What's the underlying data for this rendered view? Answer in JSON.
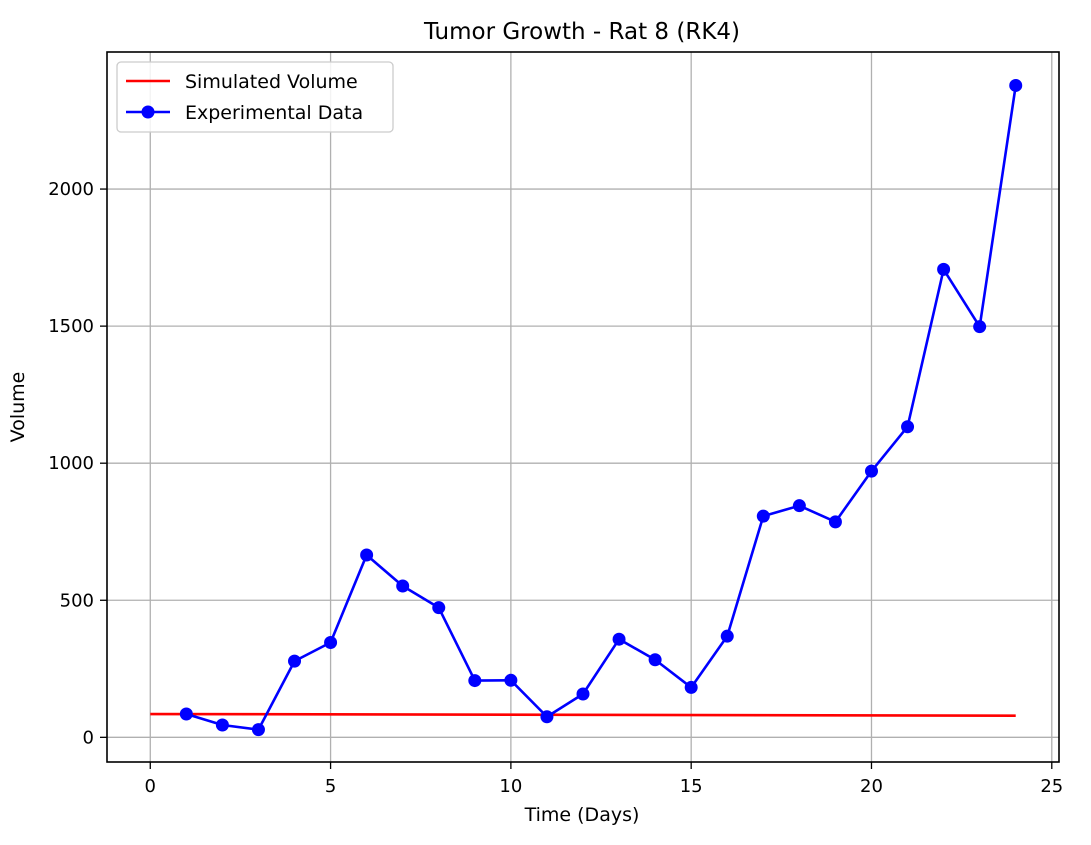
{
  "chart_data": {
    "type": "line",
    "title": "Tumor Growth - Rat 8 (RK4)",
    "xlabel": "Time (Days)",
    "ylabel": "Volume",
    "xlim": [
      -1.2,
      25.2
    ],
    "ylim": [
      -90,
      2500
    ],
    "xticks": [
      0,
      5,
      10,
      15,
      20,
      25
    ],
    "yticks": [
      0,
      500,
      1000,
      1500,
      2000
    ],
    "grid": true,
    "legend_position": "top-left",
    "series": [
      {
        "name": "Simulated Volume",
        "color": "#ff0000",
        "marker": false,
        "x": [
          0,
          24
        ],
        "y": [
          85,
          79
        ]
      },
      {
        "name": "Experimental Data",
        "color": "#0000ff",
        "marker": true,
        "x": [
          1,
          2,
          3,
          4,
          5,
          6,
          7,
          8,
          9,
          10,
          11,
          12,
          13,
          14,
          15,
          16,
          17,
          18,
          19,
          20,
          21,
          22,
          23,
          24
        ],
        "y": [
          85,
          45,
          28,
          278,
          346,
          665,
          552,
          473,
          207,
          208,
          75,
          158,
          358,
          283,
          182,
          369,
          807,
          845,
          786,
          971,
          1133,
          1707,
          1498,
          2378
        ]
      }
    ]
  }
}
